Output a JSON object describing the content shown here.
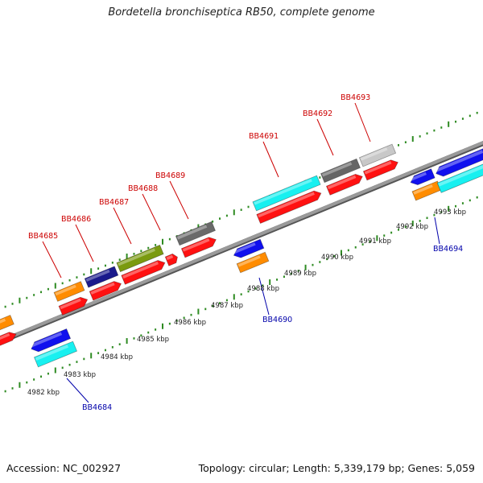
{
  "title": "Bordetella bronchiseptica RB50, complete genome",
  "footer": {
    "accession": "Accession: NC_002927",
    "summary": "Topology: circular; Length: 5,339,179 bp; Genes: 5,059"
  },
  "colors": {
    "backbone": "#808080",
    "tick": "#2e8b22",
    "label_top": "#cc0000",
    "label_bottom": "#0000aa",
    "scale_text": "#222222"
  },
  "scale": {
    "unit": "kbp",
    "labels": [
      "4982 kbp",
      "4983 kbp",
      "4984 kbp",
      "4985 kbp",
      "4986 kbp",
      "4987 kbp",
      "4988 kbp",
      "4989 kbp",
      "4990 kbp",
      "4991 kbp",
      "4992 kbp",
      "4993 kbp"
    ]
  },
  "gene_labels_top": [
    "BB4685",
    "BB4686",
    "BB4687",
    "BB4688",
    "BB4689",
    "BB4691",
    "BB4692",
    "BB4693"
  ],
  "gene_labels_bottom": [
    "BB4684",
    "BB4690",
    "BB4694"
  ]
}
